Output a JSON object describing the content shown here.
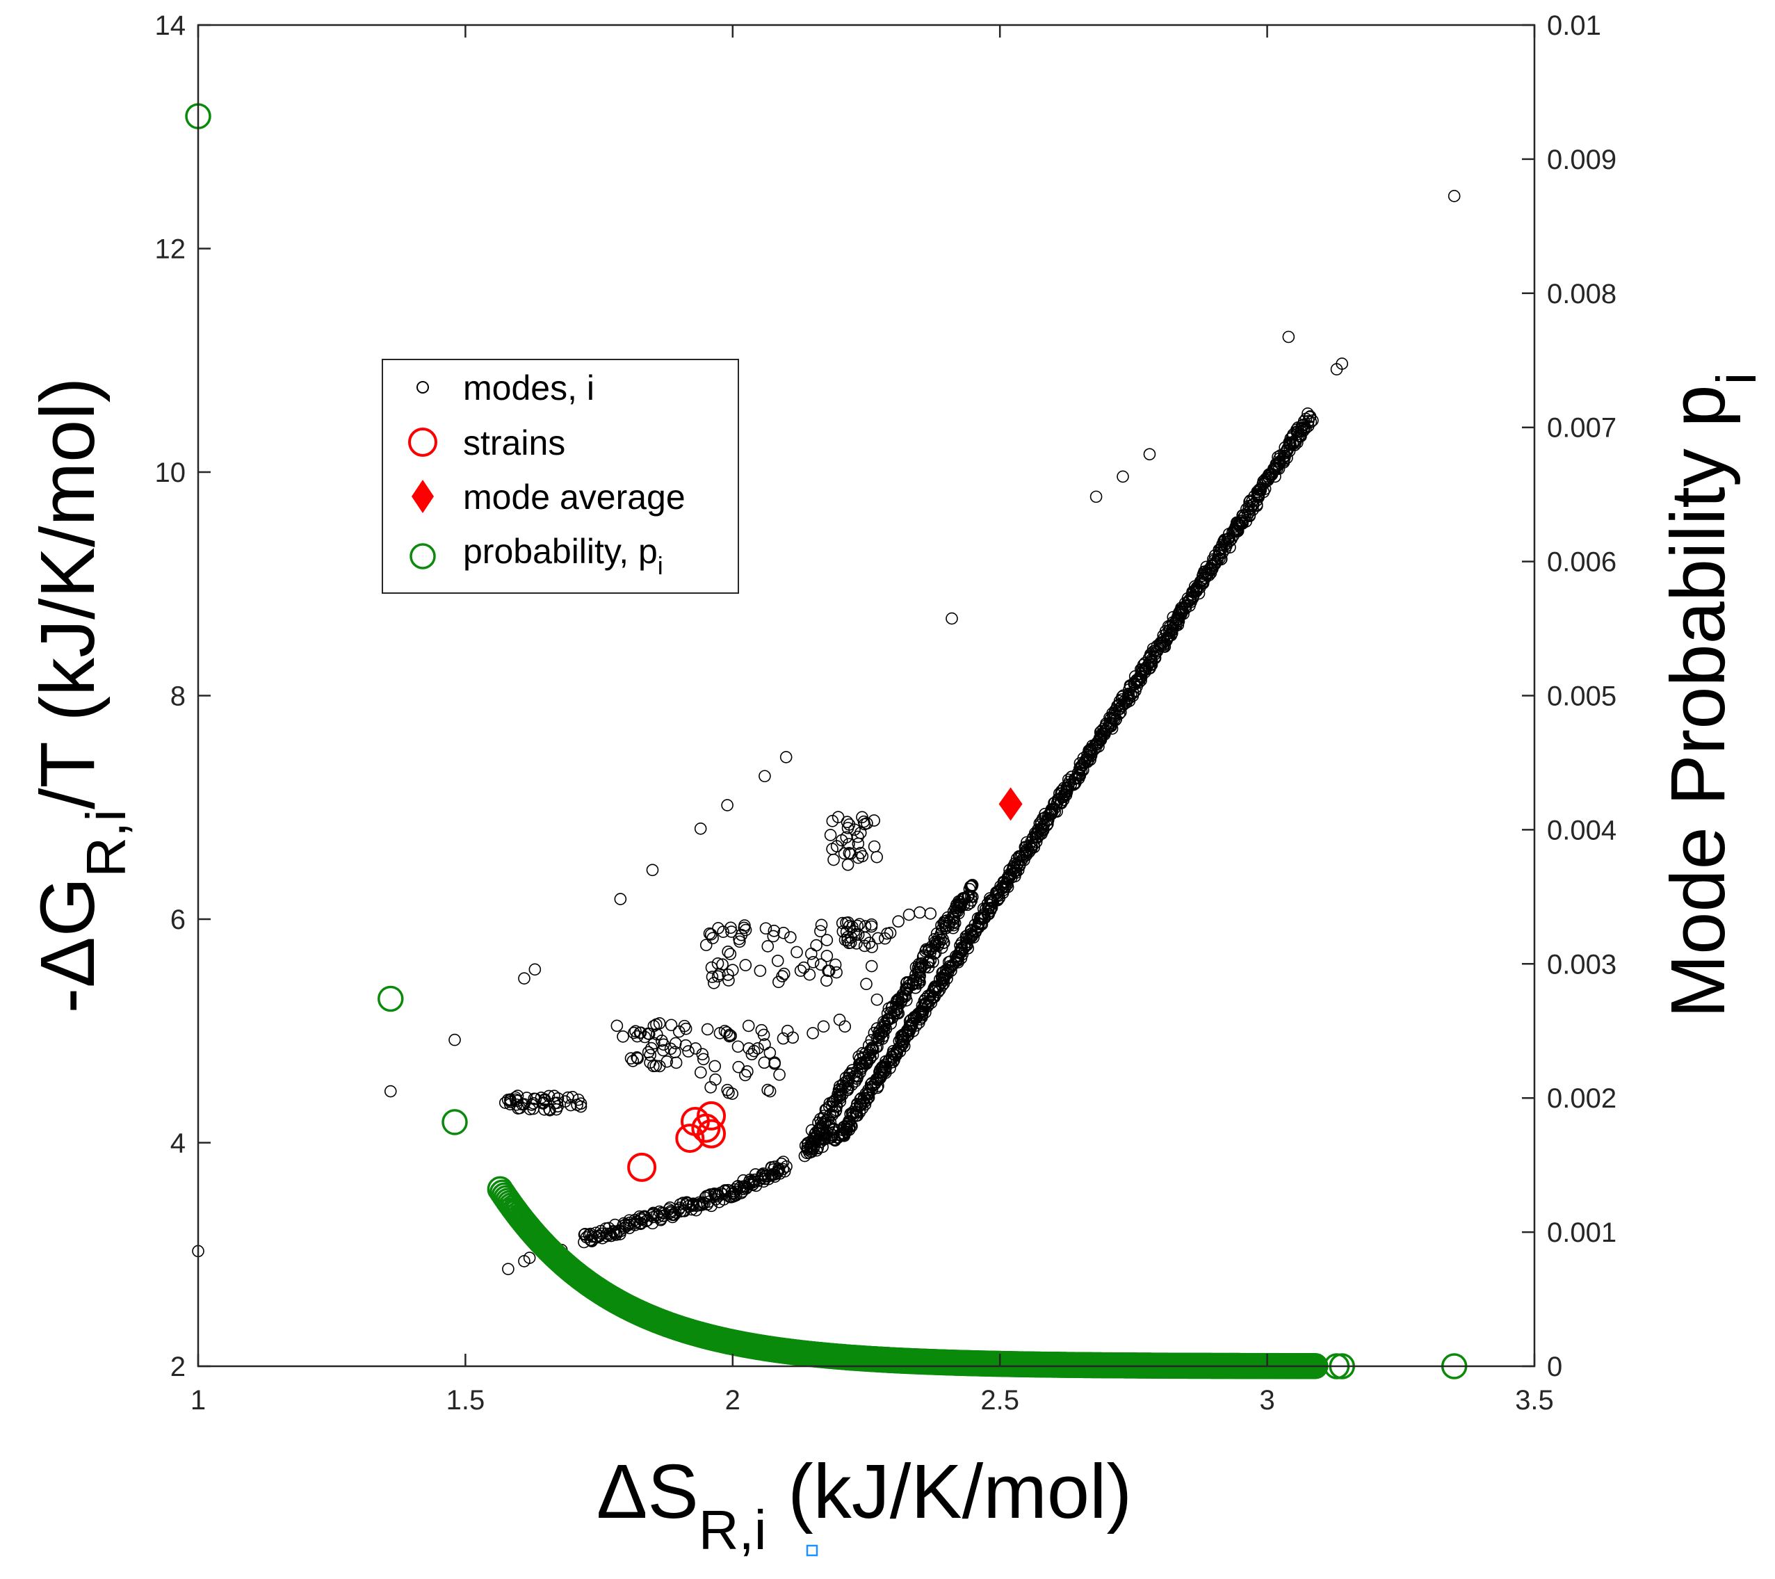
{
  "chart_data": {
    "type": "scatter",
    "x_axis": {
      "label_main": "ΔS",
      "label_sub": "R,i",
      "label_unit": " (kJ/K/mol)",
      "range": [
        1,
        3.5
      ],
      "ticks": [
        1,
        1.5,
        2,
        2.5,
        3,
        3.5
      ],
      "tick_labels": [
        "1",
        "1.5",
        "2",
        "2.5",
        "3",
        "3.5"
      ]
    },
    "y_axis_left": {
      "label_main": "-ΔG",
      "label_sub": "R,i",
      "label_unit": "/T (kJ/K/mol)",
      "range": [
        2,
        14
      ],
      "ticks": [
        2,
        4,
        6,
        8,
        10,
        12,
        14
      ],
      "tick_labels": [
        "2",
        "4",
        "6",
        "8",
        "10",
        "12",
        "14"
      ]
    },
    "y_axis_right": {
      "label_main": "Mode Probability p",
      "label_sub": "i",
      "range": [
        0,
        0.01
      ],
      "ticks": [
        0,
        0.001,
        0.002,
        0.003,
        0.004,
        0.005,
        0.006,
        0.007,
        0.008,
        0.009,
        0.01
      ],
      "tick_labels": [
        "0",
        "0.001",
        "0.002",
        "0.003",
        "0.004",
        "0.005",
        "0.006",
        "0.007",
        "0.008",
        "0.009",
        "0.01"
      ]
    },
    "legend": {
      "placement": "upper-left",
      "entries": [
        {
          "label": "modes, i",
          "sub": "",
          "marker": "small-open-circle",
          "color": "#000000"
        },
        {
          "label": "strains",
          "sub": "",
          "marker": "large-open-circle",
          "color": "#ff0000"
        },
        {
          "label": "mode average",
          "sub": "",
          "marker": "filled-diamond",
          "color": "#ff0000"
        },
        {
          "label": "probability, p",
          "sub": "i",
          "marker": "open-circle",
          "color": "#0a8a0a"
        }
      ]
    },
    "series": {
      "modes": {
        "name": "modes, i",
        "isolated_points": [
          [
            1.0,
            3.03
          ],
          [
            1.36,
            4.46
          ],
          [
            1.48,
            4.92
          ],
          [
            1.61,
            5.47
          ],
          [
            1.63,
            5.55
          ],
          [
            1.79,
            6.18
          ],
          [
            1.85,
            6.44
          ],
          [
            1.94,
            6.81
          ],
          [
            1.99,
            7.02
          ],
          [
            2.06,
            7.28
          ],
          [
            2.1,
            7.45
          ],
          [
            2.41,
            8.69
          ],
          [
            2.68,
            9.78
          ],
          [
            2.73,
            9.96
          ],
          [
            2.78,
            10.16
          ],
          [
            3.04,
            11.21
          ],
          [
            3.13,
            10.92
          ],
          [
            3.14,
            10.97
          ],
          [
            3.35,
            12.47
          ],
          [
            1.58,
            2.87
          ],
          [
            1.61,
            2.94
          ],
          [
            1.62,
            2.97
          ],
          [
            1.65,
            3.01
          ],
          [
            1.68,
            3.04
          ],
          [
            2.01,
            4.86
          ],
          [
            2.04,
            4.82
          ],
          [
            2.15,
            4.98
          ],
          [
            2.17,
            5.04
          ],
          [
            2.2,
            5.1
          ],
          [
            2.21,
            5.04
          ],
          [
            2.25,
            5.42
          ],
          [
            2.26,
            5.58
          ],
          [
            2.27,
            5.28
          ],
          [
            2.31,
            5.98
          ],
          [
            2.33,
            6.04
          ],
          [
            2.35,
            6.06
          ],
          [
            2.37,
            6.05
          ],
          [
            2.06,
            4.88
          ],
          [
            2.07,
            4.46
          ],
          [
            2.28,
            4.93
          ]
        ],
        "clusters": [
          {
            "x_range": [
              1.57,
              1.72
            ],
            "y_range": [
              4.29,
              4.42
            ],
            "count": 45
          },
          {
            "x_range": [
              1.78,
              1.92
            ],
            "y_range": [
              4.68,
              5.08
            ],
            "count": 40
          },
          {
            "x_range": [
              1.95,
              2.2
            ],
            "y_range": [
              5.42,
              5.95
            ],
            "count": 55
          },
          {
            "x_range": [
              2.2,
              2.3
            ],
            "y_range": [
              5.75,
              5.98
            ],
            "count": 30
          },
          {
            "x_range": [
              2.18,
              2.27
            ],
            "y_range": [
              6.47,
              6.93
            ],
            "count": 30
          },
          {
            "x_range": [
              1.93,
              2.12
            ],
            "y_range": [
              4.42,
              5.05
            ],
            "count": 35
          }
        ],
        "curve_segments": [
          {
            "x_start": 1.72,
            "y_start": 3.13,
            "x_end": 2.0,
            "y_end": 3.55,
            "count": 130,
            "jitter": 0.05
          },
          {
            "x_start": 2.0,
            "y_start": 3.55,
            "x_end": 2.1,
            "y_end": 3.8,
            "count": 60,
            "jitter": 0.05
          },
          {
            "x_start": 2.14,
            "y_start": 3.95,
            "x_end": 2.2,
            "y_end": 4.1,
            "count": 40,
            "jitter": 0.06
          },
          {
            "x_start": 2.2,
            "y_start": 4.05,
            "x_end": 3.08,
            "y_end": 10.5,
            "count": 900,
            "jitter": 0.04
          },
          {
            "x_start": 2.14,
            "y_start": 3.95,
            "x_end": 2.45,
            "y_end": 6.3,
            "count": 300,
            "jitter": 0.07
          }
        ]
      },
      "strains": {
        "name": "strains",
        "points": [
          [
            1.83,
            3.78
          ],
          [
            1.92,
            4.04
          ],
          [
            1.93,
            4.19
          ],
          [
            1.95,
            4.13
          ],
          [
            1.96,
            4.24
          ],
          [
            1.96,
            4.08
          ]
        ]
      },
      "mode_average": {
        "name": "mode average",
        "points": [
          [
            2.52,
            7.03
          ]
        ]
      },
      "probability": {
        "name": "probability, p",
        "axis": "right",
        "isolated_points": [
          [
            1.0,
            0.00932
          ],
          [
            1.36,
            0.00274
          ],
          [
            1.48,
            0.00182
          ],
          [
            3.13,
            0.0
          ],
          [
            3.14,
            0.0
          ],
          [
            3.35,
            0.0
          ]
        ],
        "curve": {
          "x_start": 1.565,
          "x_end": 3.09,
          "p_start": 0.00132,
          "decay_rate": 4.6,
          "count": 700
        }
      }
    }
  }
}
